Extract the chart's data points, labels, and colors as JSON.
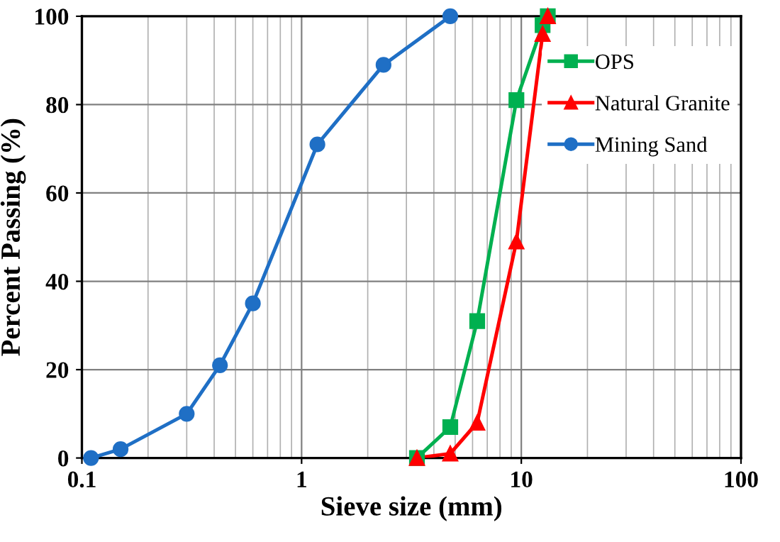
{
  "chart_data": {
    "type": "line",
    "xlabel": "Sieve size (mm)",
    "ylabel": "Percent Passing (%)",
    "log": "x",
    "xlim": [
      0.1,
      100
    ],
    "xticks": [
      0.1,
      1,
      10,
      100
    ],
    "ylim": [
      0,
      100
    ],
    "yticks": [
      0,
      20,
      40,
      60,
      80,
      100
    ],
    "grid": true,
    "legend": "top right",
    "line_style": "solid",
    "series": [
      {
        "name": "OPS",
        "color": "#00b050",
        "marker": "square",
        "x": [
          3.35,
          4.75,
          6.3,
          9.5,
          12.5,
          13.2
        ],
        "values": [
          0,
          7,
          31,
          81,
          98,
          100
        ]
      },
      {
        "name": "Natural Granite",
        "color": "#ff0000",
        "marker": "triangle",
        "x": [
          3.35,
          4.75,
          6.3,
          9.5,
          12.5,
          13.2
        ],
        "values": [
          0,
          1,
          8,
          49,
          96,
          100
        ]
      },
      {
        "name": "Mining Sand",
        "color": "#1f6fc5",
        "marker": "circle",
        "x": [
          0.11,
          0.15,
          0.3,
          0.425,
          0.6,
          1.18,
          2.36,
          4.75
        ],
        "values": [
          0,
          2,
          10,
          21,
          35,
          71,
          89,
          100
        ]
      }
    ]
  }
}
